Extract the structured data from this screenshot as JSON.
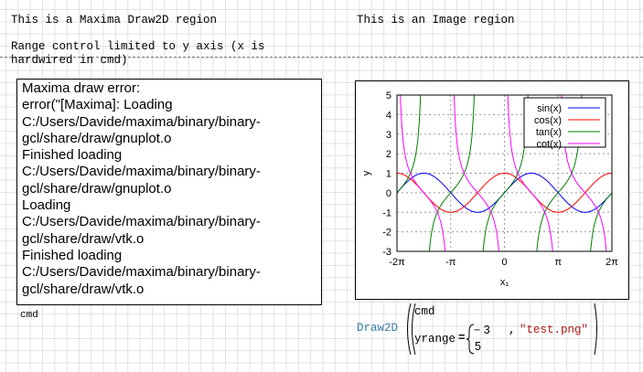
{
  "left_title": "This is a Maxima Draw2D region",
  "right_title": "This is an Image region",
  "note_line1": "Range control limited to y axis (x is",
  "note_line2": "hardwired in cmd)",
  "error_text": "Maxima draw error:\nerror(\"[Maxima]: Loading\nC:/Users/Davide/maxima/binary/binary-gcl/share/draw/gnuplot.o\nFinished loading\nC:/Users/Davide/maxima/binary/binary-gcl/share/draw/gnuplot.o\nLoading\nC:/Users/Davide/maxima/binary/binary-gcl/share/draw/vtk.o\nFinished loading\nC:/Users/Davide/maxima/binary/binary-gcl/share/draw/vtk.o",
  "cmd_label": "cmd",
  "formula": {
    "func": "Draw2D",
    "arg1": "cmd",
    "arg2_name": "yrange",
    "eq": "=",
    "ymin": "− 3",
    "ymax": "5",
    "comma": ",",
    "filename": "\"test.png\""
  },
  "chart_data": {
    "type": "line",
    "xlabel": "x₁",
    "ylabel": "y",
    "xlim": [
      -6.2832,
      6.2832
    ],
    "ylim": [
      -3,
      5
    ],
    "xticks": [
      "-2π",
      "-π",
      "0",
      "π",
      "2π"
    ],
    "xtick_values": [
      -6.2832,
      -3.1416,
      0,
      3.1416,
      6.2832
    ],
    "yticks": [
      "5",
      "4",
      "3",
      "2",
      "1",
      "0",
      "-1",
      "-2",
      "-3"
    ],
    "grid": true,
    "legend": "top-right",
    "series": [
      {
        "name": "sin(x)",
        "color": "#0000ff"
      },
      {
        "name": "cos(x)",
        "color": "#ff0000"
      },
      {
        "name": "tan(x)",
        "color": "#008000"
      },
      {
        "name": "cot(x)",
        "color": "#ff00ff"
      }
    ]
  }
}
